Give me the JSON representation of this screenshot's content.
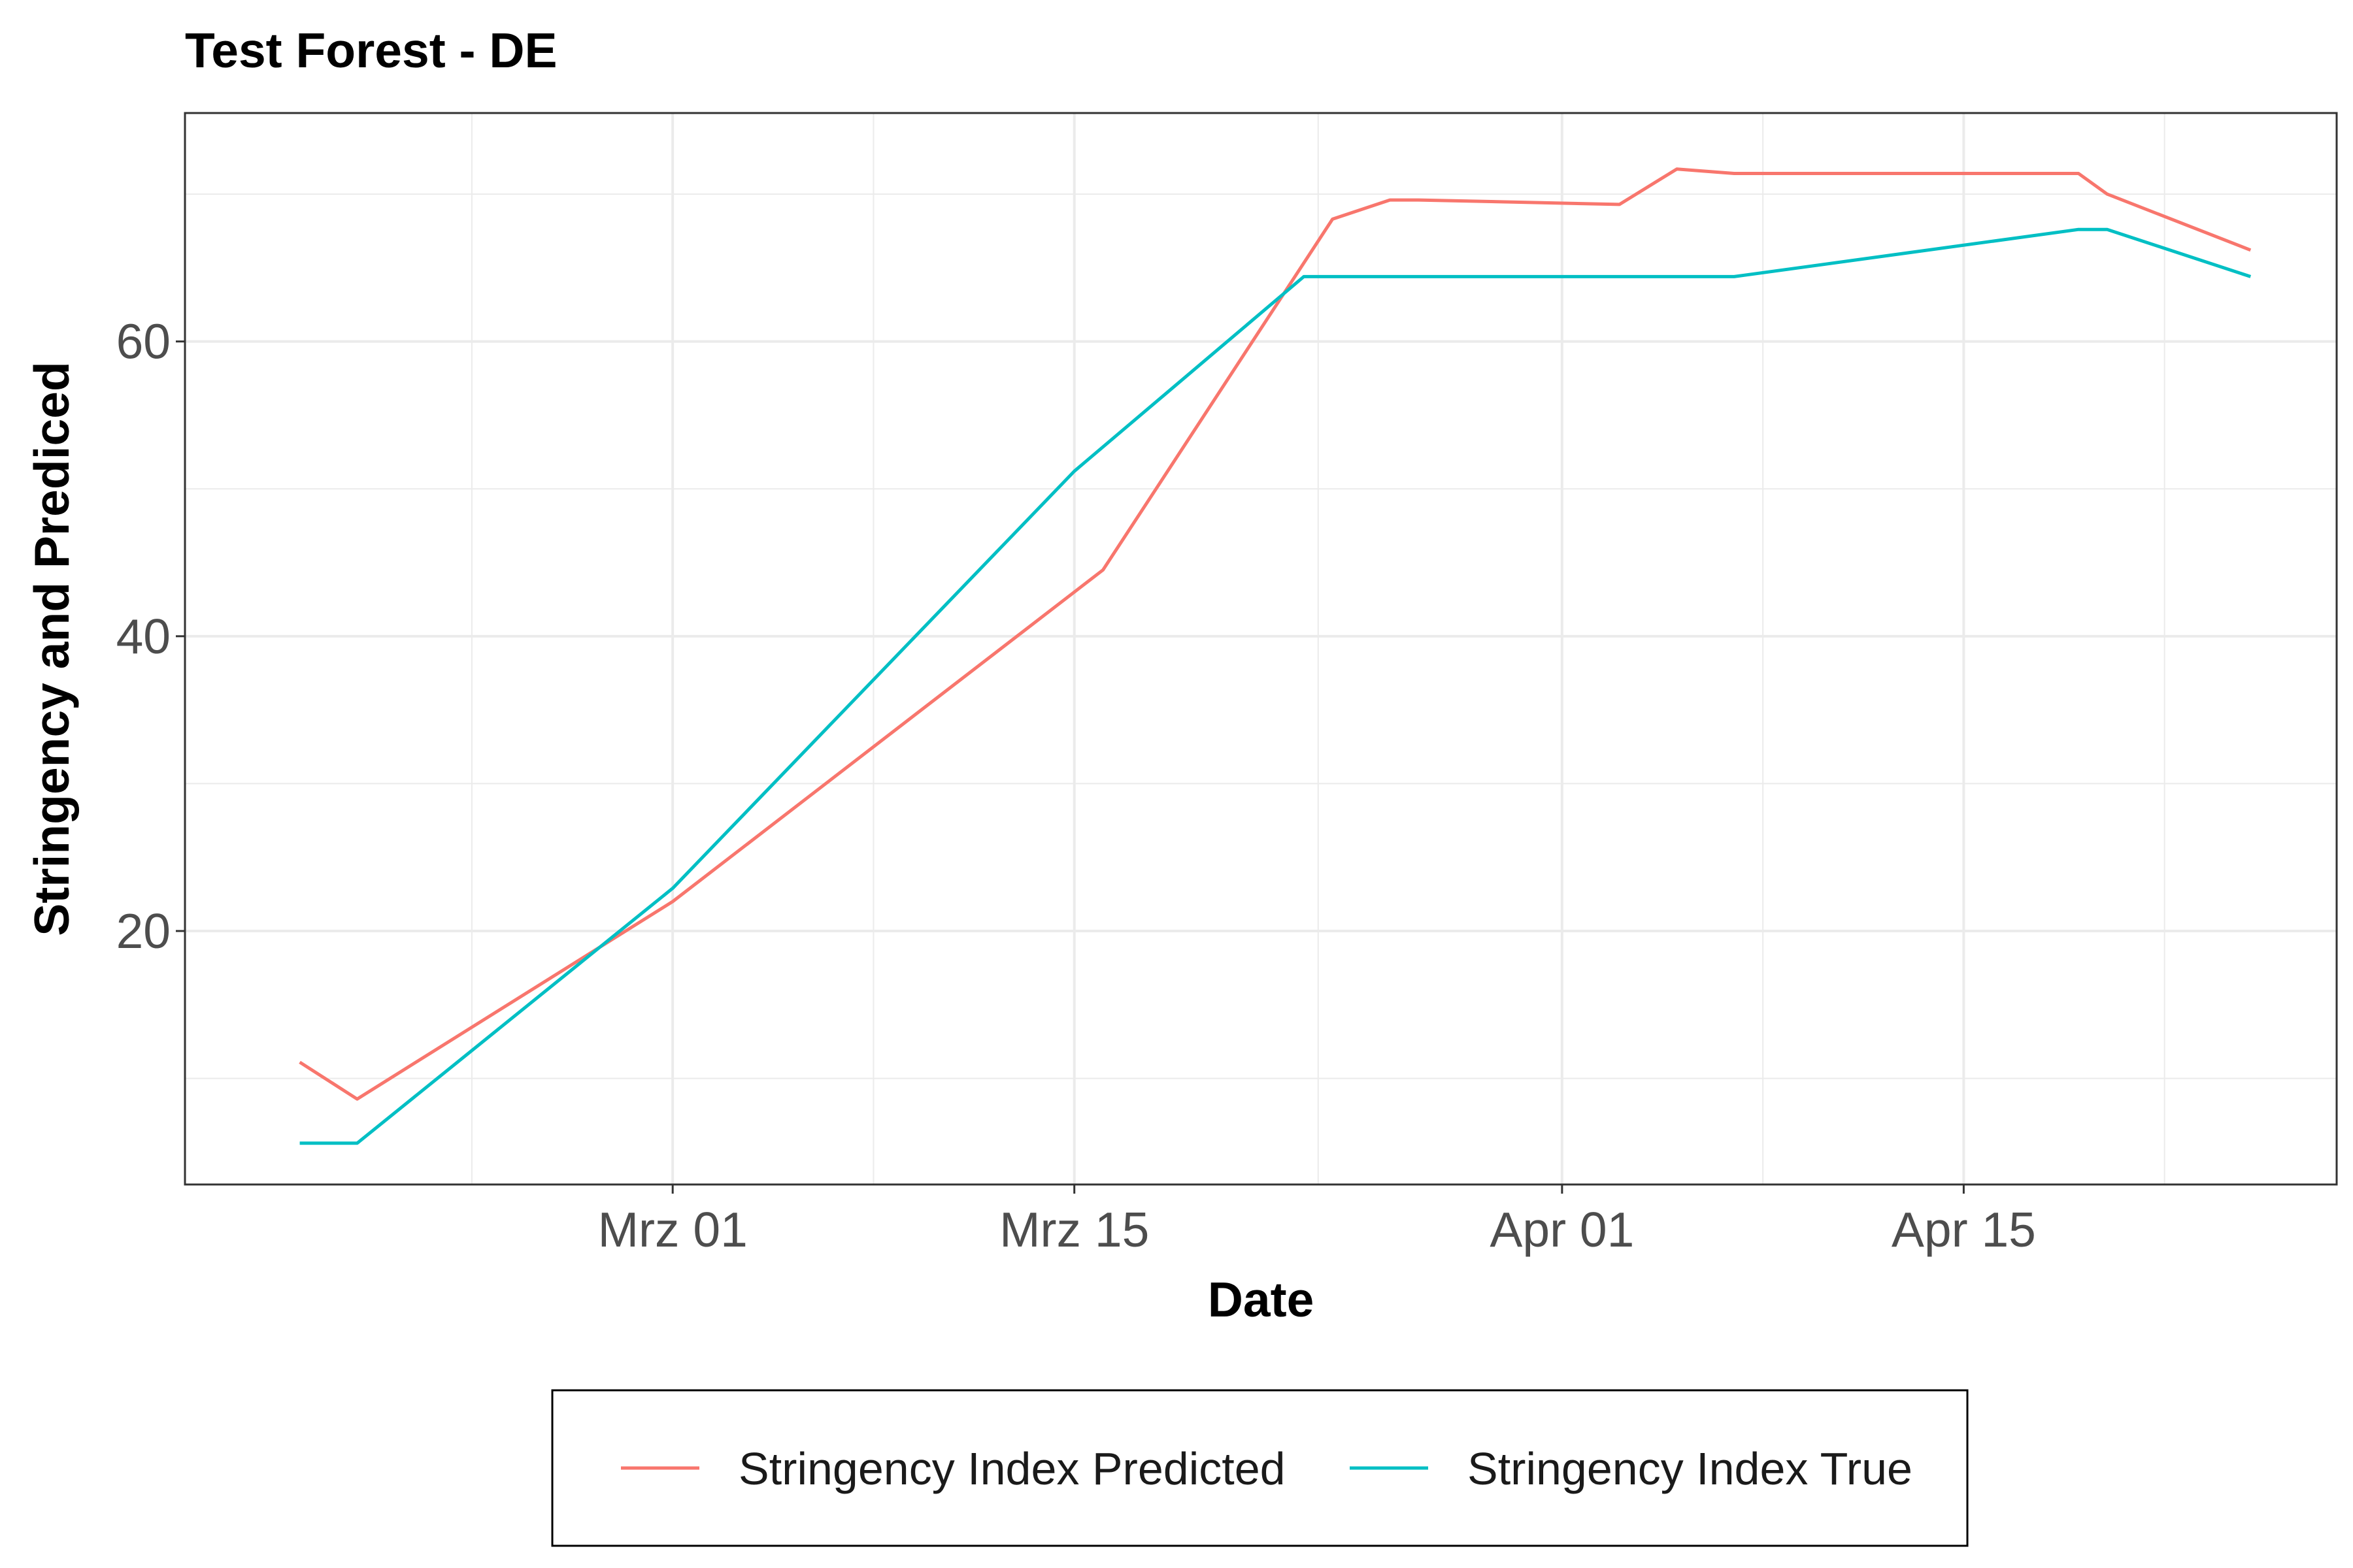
{
  "chart_data": {
    "type": "line",
    "title": "Test Forest - DE",
    "xlabel": "Date",
    "ylabel": "Stringency and Prediced",
    "x_ticks": [
      {
        "date": "2020-03-01",
        "label": "Mrz 01"
      },
      {
        "date": "2020-03-15",
        "label": "Mrz 15"
      },
      {
        "date": "2020-04-01",
        "label": "Apr 01"
      },
      {
        "date": "2020-04-15",
        "label": "Apr 15"
      }
    ],
    "y_ticks": [
      20,
      40,
      60
    ],
    "xlim": [
      "2020-02-13",
      "2020-04-28"
    ],
    "ylim": [
      2.8,
      75.5
    ],
    "grid": true,
    "legend_position": "bottom",
    "series": [
      {
        "name": "Stringency Index Predicted",
        "color": "#F8766D",
        "points": [
          {
            "x": "2020-02-17",
            "y": 11.1
          },
          {
            "x": "2020-02-19",
            "y": 8.6
          },
          {
            "x": "2020-03-01",
            "y": 22.0
          },
          {
            "x": "2020-03-16",
            "y": 44.5
          },
          {
            "x": "2020-03-24",
            "y": 68.3
          },
          {
            "x": "2020-03-26",
            "y": 69.6
          },
          {
            "x": "2020-03-27",
            "y": 69.6
          },
          {
            "x": "2020-04-03",
            "y": 69.3
          },
          {
            "x": "2020-04-05",
            "y": 71.7
          },
          {
            "x": "2020-04-07",
            "y": 71.4
          },
          {
            "x": "2020-04-19",
            "y": 71.4
          },
          {
            "x": "2020-04-20",
            "y": 70.0
          },
          {
            "x": "2020-04-25",
            "y": 66.2
          }
        ]
      },
      {
        "name": "Stringency Index True",
        "color": "#00BFC4",
        "points": [
          {
            "x": "2020-02-17",
            "y": 5.6
          },
          {
            "x": "2020-02-19",
            "y": 5.6
          },
          {
            "x": "2020-03-01",
            "y": 22.9
          },
          {
            "x": "2020-03-15",
            "y": 51.2
          },
          {
            "x": "2020-03-23",
            "y": 64.4
          },
          {
            "x": "2020-04-07",
            "y": 64.4
          },
          {
            "x": "2020-04-19",
            "y": 67.6
          },
          {
            "x": "2020-04-20",
            "y": 67.6
          },
          {
            "x": "2020-04-25",
            "y": 64.4
          }
        ]
      }
    ]
  }
}
